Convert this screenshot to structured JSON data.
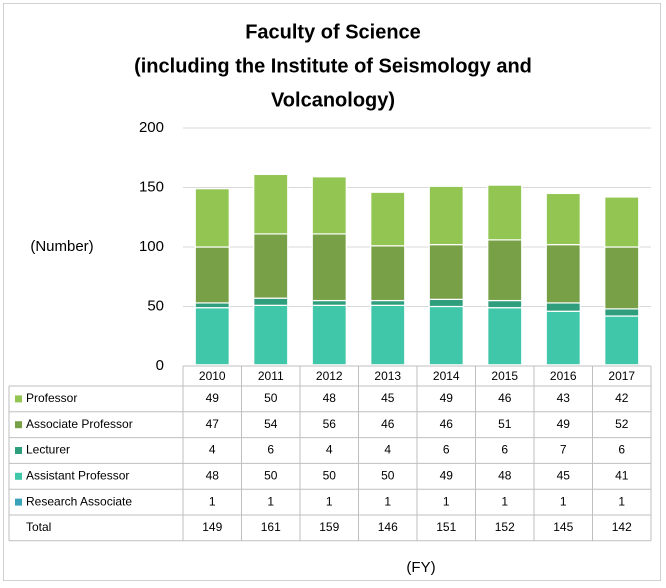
{
  "chart_data": {
    "type": "stacked_bar",
    "title": [
      "Faculty of Science",
      "(including the Institute of Seismology and",
      "Volcanology)"
    ],
    "y_label": "(Number)",
    "x_label": "(FY)",
    "categories": [
      "2010",
      "2011",
      "2012",
      "2013",
      "2014",
      "2015",
      "2016",
      "2017"
    ],
    "series": [
      {
        "name": "Professor",
        "color": "#92c552",
        "values": [
          49,
          50,
          48,
          45,
          49,
          46,
          43,
          42
        ]
      },
      {
        "name": "Associate Professor",
        "color": "#78a046",
        "values": [
          47,
          54,
          56,
          46,
          46,
          51,
          49,
          52
        ]
      },
      {
        "name": "Lecturer",
        "color": "#2f9e7c",
        "values": [
          4,
          6,
          4,
          4,
          6,
          6,
          7,
          6
        ]
      },
      {
        "name": "Assistant Professor",
        "color": "#40c6a8",
        "values": [
          48,
          50,
          50,
          50,
          49,
          48,
          45,
          41
        ]
      },
      {
        "name": "Research Associate",
        "color": "#3aa3ba",
        "values": [
          1,
          1,
          1,
          1,
          1,
          1,
          1,
          1
        ]
      }
    ],
    "totals": {
      "name": "Total",
      "values": [
        149,
        161,
        159,
        146,
        151,
        152,
        145,
        142
      ]
    },
    "ylim": [
      0,
      200
    ],
    "yticks": [
      0,
      50,
      100,
      150,
      200
    ],
    "grid": true
  }
}
